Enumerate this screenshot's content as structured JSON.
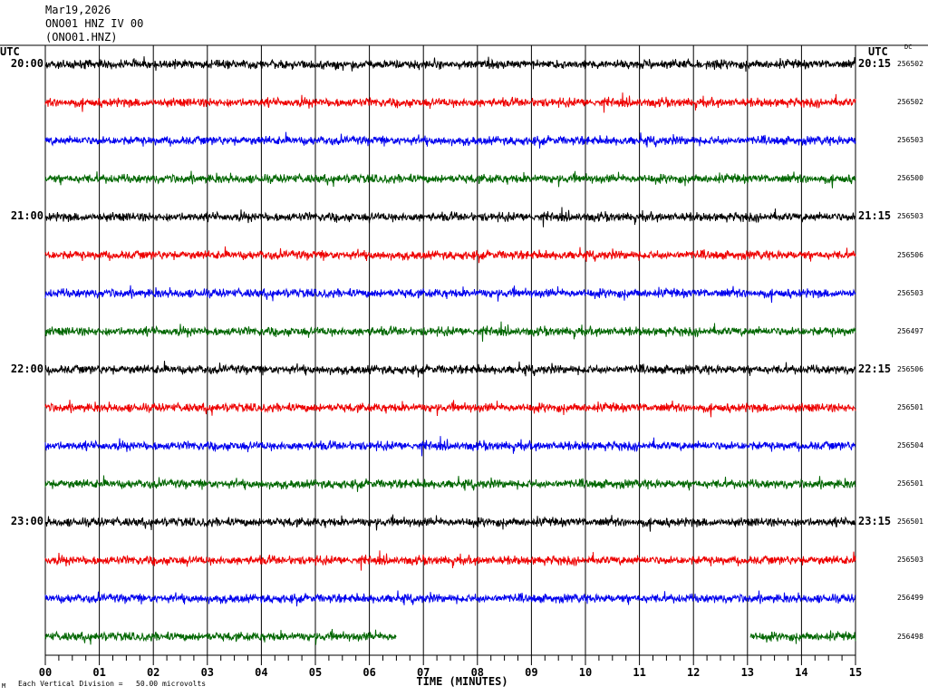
{
  "header": {
    "date": "Mar19,2026",
    "station": "ONO01 HNZ IV 00",
    "code": "(ONO01.HNZ)"
  },
  "utc_left": "UTC",
  "utc_right": "UTC",
  "dc_label": "DC",
  "corner_mark": "M",
  "scale_text": "Each Vertical Division =   50.00 microvolts",
  "colors": {
    "c0": "#000000",
    "c1": "#ee0000",
    "c2": "#0000ee",
    "c3": "#006600"
  },
  "chart_data": {
    "type": "line",
    "subtype": "helicorder",
    "xlabel": "TIME (MINUTES)",
    "xlim": [
      0,
      15
    ],
    "x_ticks": [
      "00",
      "01",
      "02",
      "03",
      "04",
      "05",
      "06",
      "07",
      "08",
      "09",
      "10",
      "11",
      "12",
      "13",
      "14",
      "15"
    ],
    "grid": "vertical lines every minute",
    "hour_labels_left": [
      "20:00",
      "21:00",
      "22:00",
      "23:00"
    ],
    "hour_labels_right": [
      "20:15",
      "21:15",
      "22:15",
      "23:15"
    ],
    "traces": [
      {
        "dc": "256502",
        "color": "#000000",
        "gaps": []
      },
      {
        "dc": "256502",
        "color": "#ee0000",
        "gaps": []
      },
      {
        "dc": "256503",
        "color": "#0000ee",
        "gaps": []
      },
      {
        "dc": "256500",
        "color": "#006600",
        "gaps": []
      },
      {
        "dc": "256503",
        "color": "#000000",
        "gaps": []
      },
      {
        "dc": "256506",
        "color": "#ee0000",
        "gaps": []
      },
      {
        "dc": "256503",
        "color": "#0000ee",
        "gaps": []
      },
      {
        "dc": "256497",
        "color": "#006600",
        "gaps": []
      },
      {
        "dc": "256506",
        "color": "#000000",
        "gaps": []
      },
      {
        "dc": "256501",
        "color": "#ee0000",
        "gaps": []
      },
      {
        "dc": "256504",
        "color": "#0000ee",
        "gaps": []
      },
      {
        "dc": "256501",
        "color": "#006600",
        "gaps": []
      },
      {
        "dc": "256501",
        "color": "#000000",
        "gaps": []
      },
      {
        "dc": "256503",
        "color": "#ee0000",
        "gaps": []
      },
      {
        "dc": "256499",
        "color": "#0000ee",
        "gaps": []
      },
      {
        "dc": "256498",
        "color": "#006600",
        "gaps": [
          [
            6.5,
            13.05
          ]
        ]
      }
    ]
  }
}
